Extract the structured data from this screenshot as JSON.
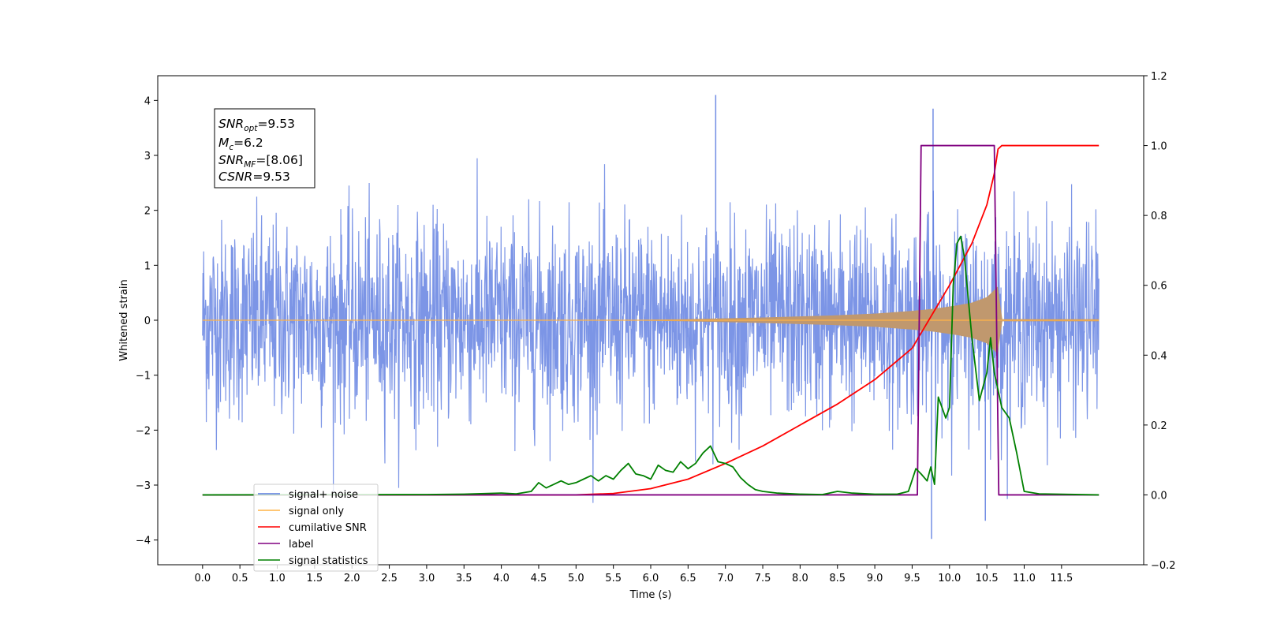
{
  "chart_data": {
    "type": "line",
    "xlabel": "Time (s)",
    "ylabel": "Whitened strain",
    "xlim": [
      -0.6,
      12.6
    ],
    "ylim": [
      -4.45,
      4.45
    ],
    "y2lim": [
      -0.2,
      1.2
    ],
    "x_ticks": [
      "0.0",
      "0.5",
      "1.0",
      "1.5",
      "2.0",
      "2.5",
      "3.0",
      "3.5",
      "4.0",
      "4.5",
      "5.0",
      "5.5",
      "6.0",
      "6.5",
      "7.0",
      "7.5",
      "8.0",
      "8.5",
      "9.0",
      "9.5",
      "10.0",
      "10.5",
      "11.0",
      "11.5"
    ],
    "y_ticks": [
      "−4",
      "−3",
      "−2",
      "−1",
      "0",
      "1",
      "2",
      "3",
      "4"
    ],
    "y2_ticks": [
      "−0.2",
      "0.0",
      "0.2",
      "0.4",
      "0.6",
      "0.8",
      "1.0",
      "1.2"
    ],
    "grid": false,
    "annotation": {
      "snr_opt": "=9.53",
      "mc": "=6.2",
      "snr_mf": "=[8.06]",
      "csnr": "=9.53"
    },
    "legend_position": "lower-left",
    "series": [
      {
        "name": "signal+ noise",
        "axis": "left",
        "color": "#5b7be0",
        "description_note": "whitened noise around 0 with typical amplitude ±2.3, spikes up to about 4.1 and down to about -4.0",
        "x_range": [
          0.0,
          12.0
        ],
        "noise_std": 0.9,
        "peaks": [
          {
            "x": 6.87,
            "y": 4.1
          },
          {
            "x": 9.78,
            "y": 3.85
          },
          {
            "x": 9.76,
            "y": -3.98
          },
          {
            "x": 10.48,
            "y": -3.65
          }
        ]
      },
      {
        "name": "signal only",
        "axis": "left",
        "color": "#ffb347",
        "description_note": "chirp envelope growing from 0 near t=5.5 s to about 0.6 at t=10.65 s, then ~0",
        "x": [
          0.0,
          5.5,
          6.5,
          7.5,
          8.5,
          9.0,
          9.5,
          9.8,
          10.1,
          10.3,
          10.5,
          10.6,
          10.65,
          10.7,
          12.0
        ],
        "envelope": [
          0.0,
          0.0,
          0.02,
          0.05,
          0.09,
          0.12,
          0.17,
          0.21,
          0.27,
          0.32,
          0.42,
          0.55,
          0.62,
          0.02,
          0.02
        ]
      },
      {
        "name": "cumilative SNR",
        "axis": "right",
        "color": "#ff0000",
        "x": [
          0.0,
          5.0,
          5.5,
          6.0,
          6.5,
          7.0,
          7.5,
          8.0,
          8.5,
          9.0,
          9.5,
          10.0,
          10.3,
          10.5,
          10.6,
          10.65,
          10.7,
          12.0
        ],
        "values": [
          0.0,
          0.0,
          0.004,
          0.018,
          0.045,
          0.09,
          0.14,
          0.2,
          0.26,
          0.33,
          0.42,
          0.6,
          0.72,
          0.83,
          0.92,
          0.99,
          1.0,
          1.0
        ]
      },
      {
        "name": "label",
        "axis": "right",
        "color": "#800080",
        "x": [
          0.0,
          9.57,
          9.62,
          10.6,
          10.66,
          12.0
        ],
        "values": [
          0.0,
          0.0,
          1.0,
          1.0,
          0.0,
          0.0
        ]
      },
      {
        "name": "signal statistics",
        "axis": "right",
        "color": "#008000",
        "x": [
          0.0,
          3.0,
          3.5,
          4.0,
          4.2,
          4.4,
          4.5,
          4.6,
          4.7,
          4.8,
          4.9,
          5.0,
          5.1,
          5.2,
          5.3,
          5.4,
          5.5,
          5.6,
          5.7,
          5.8,
          5.9,
          6.0,
          6.1,
          6.2,
          6.3,
          6.4,
          6.5,
          6.6,
          6.7,
          6.8,
          6.9,
          7.0,
          7.1,
          7.2,
          7.3,
          7.4,
          7.5,
          7.7,
          8.0,
          8.3,
          8.5,
          8.7,
          9.0,
          9.3,
          9.45,
          9.55,
          9.62,
          9.7,
          9.75,
          9.8,
          9.85,
          9.95,
          10.0,
          10.05,
          10.1,
          10.15,
          10.2,
          10.3,
          10.4,
          10.5,
          10.55,
          10.6,
          10.7,
          10.8,
          10.9,
          11.0,
          11.2,
          12.0
        ],
        "values": [
          0.0,
          0.001,
          0.002,
          0.005,
          0.003,
          0.01,
          0.035,
          0.02,
          0.03,
          0.04,
          0.03,
          0.035,
          0.045,
          0.055,
          0.04,
          0.055,
          0.045,
          0.07,
          0.09,
          0.06,
          0.055,
          0.045,
          0.085,
          0.07,
          0.065,
          0.095,
          0.075,
          0.09,
          0.12,
          0.14,
          0.095,
          0.09,
          0.08,
          0.05,
          0.03,
          0.015,
          0.01,
          0.005,
          0.002,
          0.001,
          0.01,
          0.005,
          0.002,
          0.002,
          0.01,
          0.075,
          0.06,
          0.04,
          0.08,
          0.03,
          0.28,
          0.22,
          0.25,
          0.6,
          0.72,
          0.74,
          0.68,
          0.45,
          0.27,
          0.35,
          0.45,
          0.35,
          0.25,
          0.22,
          0.12,
          0.01,
          0.003,
          0.0
        ]
      }
    ]
  }
}
